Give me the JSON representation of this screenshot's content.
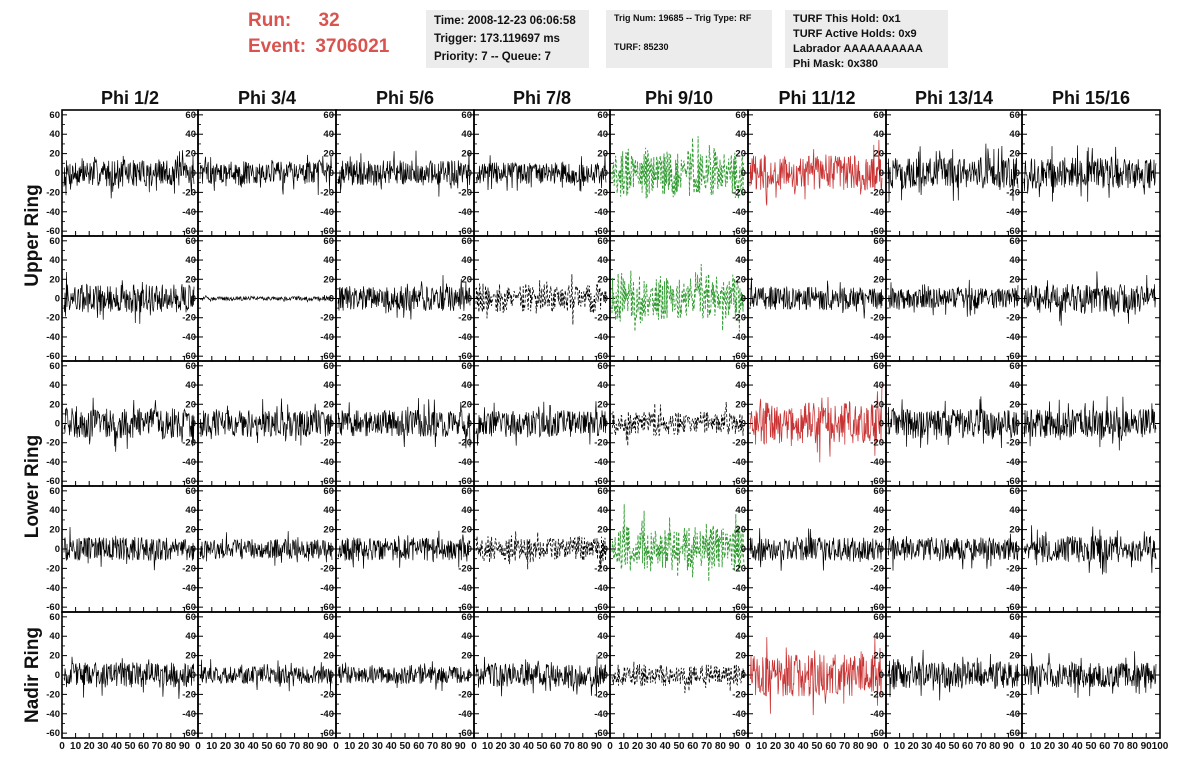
{
  "header": {
    "run_label": "Run:",
    "run_value": "32",
    "event_label": "Event:",
    "event_value": "3706021",
    "time": "Time: 2008-12-23 06:06:58",
    "trigger": "Trigger: 173.119697 ms",
    "priority": "Priority: 7 -- Queue: 7",
    "trig_num": "Trig Num: 19685 -- Trig Type: RF",
    "turf": "TURF: 85230",
    "turf_hold": "TURF This Hold: 0x1",
    "turf_active": "TURF Active Holds: 0x9",
    "labrador": "Labrador AAAAAAAAAA",
    "phi_mask": "Phi Mask: 0x380"
  },
  "colors": {
    "header_accent": "#d9534f",
    "normal_trace": "#000000",
    "green_trace": "#2e9a2e",
    "red_trace": "#c83232",
    "info_background": "#ececec"
  },
  "chart_data": {
    "type": "line",
    "columns": [
      "Phi 1/2",
      "Phi 3/4",
      "Phi 5/6",
      "Phi 7/8",
      "Phi 9/10",
      "Phi 11/12",
      "Phi 13/14",
      "Phi 15/16"
    ],
    "rows": [
      "Upper Ring",
      "Upper Ring",
      "Lower Ring",
      "Lower Ring",
      "Nadir Ring"
    ],
    "row_labels": [
      "Upper Ring",
      "Lower Ring",
      "Nadir Ring"
    ],
    "xlim": [
      0,
      100
    ],
    "ylim": [
      -65,
      65
    ],
    "y_ticks": [
      -60,
      -40,
      -20,
      0,
      20,
      40,
      60
    ],
    "x_tick_labels": [
      "0",
      "10",
      "20",
      "30",
      "40",
      "50",
      "60",
      "70",
      "80",
      "90",
      "100"
    ],
    "grid": false,
    "panels": [
      [
        {
          "style": "normal",
          "amplitude": 14
        },
        {
          "style": "normal",
          "amplitude": 12
        },
        {
          "style": "normal",
          "amplitude": 13
        },
        {
          "style": "normal",
          "amplitude": 11
        },
        {
          "style": "green-dashed",
          "amplitude": 28
        },
        {
          "style": "red",
          "amplitude": 18
        },
        {
          "style": "normal",
          "amplitude": 16
        },
        {
          "style": "normal",
          "amplitude": 16
        }
      ],
      [
        {
          "style": "normal",
          "amplitude": 15
        },
        {
          "style": "normal",
          "amplitude": 2
        },
        {
          "style": "normal",
          "amplitude": 13
        },
        {
          "style": "black-dashed",
          "amplitude": 16
        },
        {
          "style": "green-dashed",
          "amplitude": 26
        },
        {
          "style": "normal",
          "amplitude": 12
        },
        {
          "style": "normal",
          "amplitude": 11
        },
        {
          "style": "normal",
          "amplitude": 15
        }
      ],
      [
        {
          "style": "normal",
          "amplitude": 16
        },
        {
          "style": "normal",
          "amplitude": 14
        },
        {
          "style": "normal",
          "amplitude": 14
        },
        {
          "style": "normal",
          "amplitude": 14
        },
        {
          "style": "black-dashed",
          "amplitude": 14
        },
        {
          "style": "red",
          "amplitude": 22
        },
        {
          "style": "normal",
          "amplitude": 15
        },
        {
          "style": "normal",
          "amplitude": 15
        }
      ],
      [
        {
          "style": "normal",
          "amplitude": 12
        },
        {
          "style": "normal",
          "amplitude": 10
        },
        {
          "style": "normal",
          "amplitude": 12
        },
        {
          "style": "black-dashed",
          "amplitude": 14
        },
        {
          "style": "green-dashed",
          "amplitude": 26
        },
        {
          "style": "normal",
          "amplitude": 12
        },
        {
          "style": "normal",
          "amplitude": 12
        },
        {
          "style": "normal",
          "amplitude": 14
        }
      ],
      [
        {
          "style": "normal",
          "amplitude": 13
        },
        {
          "style": "normal",
          "amplitude": 9
        },
        {
          "style": "normal",
          "amplitude": 9
        },
        {
          "style": "normal",
          "amplitude": 12
        },
        {
          "style": "black-dashed",
          "amplitude": 12
        },
        {
          "style": "red",
          "amplitude": 22
        },
        {
          "style": "normal",
          "amplitude": 14
        },
        {
          "style": "normal",
          "amplitude": 13
        }
      ]
    ]
  }
}
